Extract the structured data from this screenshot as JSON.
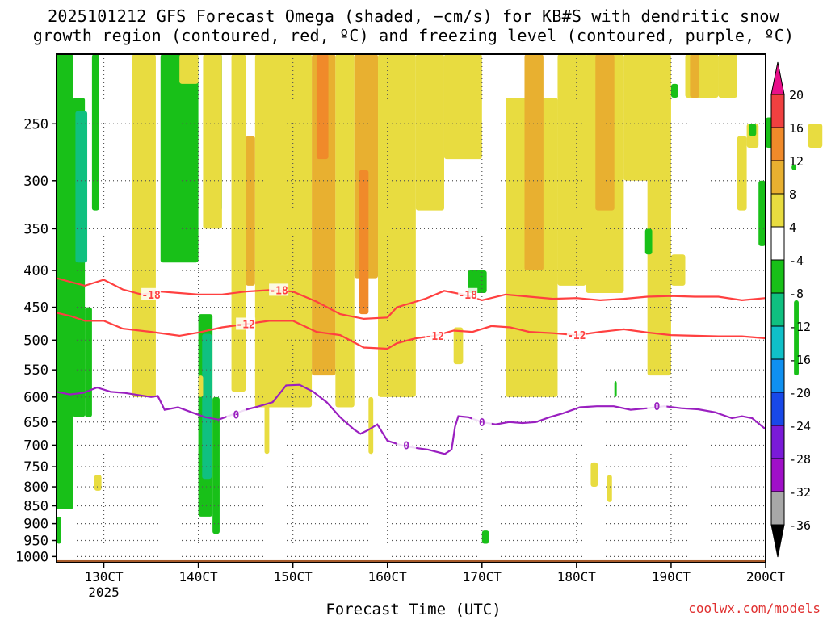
{
  "title": {
    "line1": "2025101212 GFS Forecast Omega (shaded, −cm/s) for KB#S with dendritic snow",
    "line2": "growth region (contoured, red, ºC) and freezing level (contoured, purple, ºC)"
  },
  "xlabel": "Forecast Time (UTC)",
  "credit": "coolwx.com/models",
  "colors": {
    "dgz_contour": "#ff4040",
    "freezing_contour": "#9a1fc0",
    "terrain": "#a65a2a"
  },
  "chart_data": {
    "type": "heatmap",
    "title": "2025101212 GFS Forecast Omega (shaded, −cm/s) for KB#S with dendritic snow growth region (contoured, red, ºC) and freezing level (contoured, purple, ºC)",
    "xlabel": "Forecast Time (UTC)",
    "ylabel": "",
    "x_axis": {
      "range": [
        "12 Oct 2025 12Z",
        "20 Oct 2025 00Z"
      ],
      "ticks": [
        "130CT",
        "140CT",
        "150CT",
        "160CT",
        "170CT",
        "180CT",
        "190CT",
        "200CT"
      ],
      "sub_label": "2025"
    },
    "y_axis": {
      "units": "hPa",
      "scale": "log-pressure, inverted",
      "range": [
        1020,
        200
      ],
      "ticks": [
        250,
        300,
        350,
        400,
        450,
        500,
        550,
        600,
        650,
        700,
        750,
        800,
        850,
        900,
        950,
        1000
      ]
    },
    "grid": true,
    "colorbar": {
      "placement": "right",
      "labels": [
        "20",
        "16",
        "12",
        "8",
        "4",
        "-4",
        "-8",
        "-12",
        "-16",
        "-20",
        "-24",
        "-28",
        "-32",
        "-36"
      ],
      "bands": [
        {
          "from": 16,
          "to": 20,
          "color": "#f04040"
        },
        {
          "from": 12,
          "to": 16,
          "color": "#f08a2a"
        },
        {
          "from": 8,
          "to": 12,
          "color": "#e8b030"
        },
        {
          "from": 4,
          "to": 8,
          "color": "#e8dc40"
        },
        {
          "from": -4,
          "to": 4,
          "color": "#ffffff"
        },
        {
          "from": -8,
          "to": -4,
          "color": "#18c018"
        },
        {
          "from": -12,
          "to": -8,
          "color": "#10c080"
        },
        {
          "from": -16,
          "to": -12,
          "color": "#10c0c8"
        },
        {
          "from": -20,
          "to": -16,
          "color": "#1090f0"
        },
        {
          "from": -24,
          "to": -20,
          "color": "#1848e8"
        },
        {
          "from": -28,
          "to": -24,
          "color": "#7a1ad8"
        },
        {
          "from": -32,
          "to": -28,
          "color": "#a010c8"
        },
        {
          "from": -36,
          "to": -32,
          "color": "#a8a8a8"
        }
      ],
      "top_arrow_color": "#e8108a",
      "bottom_arrow_color": "#000000"
    },
    "series": [
      {
        "name": "-18",
        "kind": "contour",
        "color": "#ff4040",
        "label_times": [
          2.0,
          4.7,
          8.7
        ],
        "points": [
          [
            0.0,
            410
          ],
          [
            0.3,
            415
          ],
          [
            0.6,
            420
          ],
          [
            1.0,
            412
          ],
          [
            1.4,
            425
          ],
          [
            1.8,
            432
          ],
          [
            2.2,
            428
          ],
          [
            2.6,
            430
          ],
          [
            3.0,
            432
          ],
          [
            3.5,
            432
          ],
          [
            4.0,
            428
          ],
          [
            4.5,
            426
          ],
          [
            5.0,
            428
          ],
          [
            5.5,
            442
          ],
          [
            6.0,
            460
          ],
          [
            6.5,
            467
          ],
          [
            7.0,
            465
          ],
          [
            7.2,
            450
          ],
          [
            7.8,
            438
          ],
          [
            8.2,
            427
          ],
          [
            8.6,
            432
          ],
          [
            9.0,
            440
          ],
          [
            9.5,
            432
          ],
          [
            10.0,
            435
          ],
          [
            10.5,
            438
          ],
          [
            11.0,
            437
          ],
          [
            11.5,
            440
          ],
          [
            12.0,
            438
          ],
          [
            12.5,
            435
          ],
          [
            13.0,
            434
          ],
          [
            13.5,
            435
          ],
          [
            14.0,
            435
          ],
          [
            14.5,
            440
          ],
          [
            15.0,
            437
          ]
        ]
      },
      {
        "name": "-12",
        "kind": "contour",
        "color": "#ff4040",
        "label_times": [
          4.0,
          8.0,
          11.0
        ],
        "points": [
          [
            0.0,
            458
          ],
          [
            0.3,
            463
          ],
          [
            0.6,
            470
          ],
          [
            1.0,
            470
          ],
          [
            1.4,
            482
          ],
          [
            2.0,
            487
          ],
          [
            2.6,
            493
          ],
          [
            3.0,
            488
          ],
          [
            3.5,
            480
          ],
          [
            4.0,
            475
          ],
          [
            4.5,
            470
          ],
          [
            5.0,
            470
          ],
          [
            5.5,
            487
          ],
          [
            6.0,
            492
          ],
          [
            6.5,
            512
          ],
          [
            7.0,
            514
          ],
          [
            7.2,
            505
          ],
          [
            7.6,
            497
          ],
          [
            8.0,
            493
          ],
          [
            8.4,
            485
          ],
          [
            8.8,
            487
          ],
          [
            9.2,
            478
          ],
          [
            9.6,
            480
          ],
          [
            10.0,
            487
          ],
          [
            10.5,
            489
          ],
          [
            11.0,
            492
          ],
          [
            11.5,
            487
          ],
          [
            12.0,
            483
          ],
          [
            12.5,
            488
          ],
          [
            13.0,
            492
          ],
          [
            13.5,
            493
          ],
          [
            14.0,
            494
          ],
          [
            14.5,
            494
          ],
          [
            15.0,
            497
          ]
        ]
      },
      {
        "name": "0",
        "kind": "contour",
        "color": "#9a1fc0",
        "label_times": [
          3.8,
          7.4,
          9.0,
          12.7
        ],
        "points": [
          [
            0.0,
            590
          ],
          [
            0.4,
            595
          ],
          [
            0.8,
            592
          ],
          [
            1.2,
            582
          ],
          [
            1.6,
            590
          ],
          [
            2.0,
            592
          ],
          [
            2.4,
            596
          ],
          [
            2.8,
            600
          ],
          [
            3.0,
            598
          ],
          [
            3.2,
            625
          ],
          [
            3.6,
            620
          ],
          [
            4.0,
            630
          ],
          [
            4.4,
            640
          ],
          [
            4.8,
            645
          ],
          [
            5.2,
            635
          ],
          [
            5.6,
            625
          ],
          [
            6.0,
            618
          ],
          [
            6.4,
            610
          ],
          [
            6.8,
            578
          ],
          [
            7.2,
            577
          ],
          [
            7.6,
            590
          ],
          [
            8.0,
            610
          ],
          [
            8.4,
            640
          ],
          [
            8.8,
            665
          ],
          [
            9.0,
            675
          ],
          [
            9.2,
            668
          ],
          [
            9.5,
            655
          ],
          [
            9.8,
            690
          ],
          [
            10.2,
            700
          ],
          [
            10.6,
            706
          ],
          [
            11.0,
            710
          ],
          [
            11.5,
            720
          ],
          [
            11.7,
            710
          ],
          [
            11.8,
            660
          ],
          [
            11.9,
            638
          ],
          [
            12.2,
            640
          ],
          [
            12.6,
            650
          ],
          [
            13.0,
            655
          ],
          [
            13.4,
            650
          ],
          [
            13.8,
            652
          ],
          [
            14.2,
            650
          ],
          [
            14.6,
            640
          ],
          [
            15.0,
            632
          ],
          [
            15.5,
            620
          ],
          [
            16.0,
            618
          ],
          [
            16.5,
            618
          ],
          [
            17.0,
            625
          ],
          [
            17.5,
            622
          ],
          [
            18.0,
            618
          ],
          [
            18.5,
            622
          ],
          [
            19.0,
            624
          ],
          [
            19.5,
            630
          ],
          [
            20.0,
            642
          ],
          [
            20.3,
            638
          ],
          [
            20.6,
            642
          ],
          [
            21.0,
            665
          ]
        ]
      }
    ],
    "omega_regions": [
      {
        "t0": 0.0,
        "t1": 0.35,
        "p_top": 200,
        "p_bot": 860,
        "value": -6
      },
      {
        "t0": 0.35,
        "t1": 0.6,
        "p_top": 230,
        "p_bot": 640,
        "value": -6
      },
      {
        "t0": 0.4,
        "t1": 0.65,
        "p_top": 240,
        "p_bot": 390,
        "value": -10
      },
      {
        "t0": 0.75,
        "t1": 0.9,
        "p_top": 200,
        "p_bot": 330,
        "value": -6
      },
      {
        "t0": 0.6,
        "t1": 0.75,
        "p_top": 450,
        "p_bot": 640,
        "value": -6
      },
      {
        "t0": 2.2,
        "t1": 3.0,
        "p_top": 200,
        "p_bot": 390,
        "value": -6
      },
      {
        "t0": 3.0,
        "t1": 3.3,
        "p_top": 460,
        "p_bot": 880,
        "value": -6
      },
      {
        "t0": 3.08,
        "t1": 3.28,
        "p_top": 490,
        "p_bot": 780,
        "value": -12
      },
      {
        "t0": 3.3,
        "t1": 3.45,
        "p_top": 600,
        "p_bot": 930,
        "value": -6
      },
      {
        "t0": 3.42,
        "t1": 3.5,
        "p_top": 200,
        "p_bot": 330,
        "value": -14
      },
      {
        "t0": 8.7,
        "t1": 9.1,
        "p_top": 400,
        "p_bot": 430,
        "value": -6
      },
      {
        "t0": 9.0,
        "t1": 9.15,
        "p_top": 920,
        "p_bot": 960,
        "value": -6
      },
      {
        "t0": 11.8,
        "t1": 11.85,
        "p_top": 570,
        "p_bot": 600,
        "value": -6
      },
      {
        "t0": 12.45,
        "t1": 12.6,
        "p_top": 350,
        "p_bot": 380,
        "value": -6
      },
      {
        "t0": 13.0,
        "t1": 13.15,
        "p_top": 220,
        "p_bot": 230,
        "value": -6
      },
      {
        "t0": 14.65,
        "t1": 14.8,
        "p_top": 250,
        "p_bot": 260,
        "value": -6
      },
      {
        "t0": 15.0,
        "t1": 15.3,
        "p_top": 245,
        "p_bot": 270,
        "value": -8
      },
      {
        "t0": 14.85,
        "t1": 15.0,
        "p_top": 300,
        "p_bot": 370,
        "value": -6
      },
      {
        "t0": 15.55,
        "t1": 15.65,
        "p_top": 285,
        "p_bot": 290,
        "value": -6
      },
      {
        "t0": 15.6,
        "t1": 15.7,
        "p_top": 440,
        "p_bot": 560,
        "value": -6
      },
      {
        "t0": 0.0,
        "t1": 0.1,
        "p_top": 880,
        "p_bot": 960,
        "value": -6
      },
      {
        "t0": 3.0,
        "t1": 3.1,
        "p_top": 560,
        "p_bot": 600,
        "value": 6
      },
      {
        "t0": 3.1,
        "t1": 3.5,
        "p_top": 200,
        "p_bot": 350,
        "value": 6
      },
      {
        "t0": 2.6,
        "t1": 3.0,
        "p_top": 200,
        "p_bot": 220,
        "value": 6
      }
    ],
    "positive_regions": [
      {
        "t0": 1.6,
        "t1": 2.1,
        "p_top": 200,
        "p_bot": 600,
        "value": 5
      },
      {
        "t0": 3.7,
        "t1": 4.0,
        "p_top": 200,
        "p_bot": 590,
        "value": 5
      },
      {
        "t0": 4.0,
        "t1": 4.2,
        "p_top": 260,
        "p_bot": 420,
        "value": 9
      },
      {
        "t0": 4.2,
        "t1": 5.4,
        "p_top": 200,
        "p_bot": 620,
        "value": 5
      },
      {
        "t0": 5.4,
        "t1": 5.9,
        "p_top": 200,
        "p_bot": 560,
        "value": 9
      },
      {
        "t0": 5.5,
        "t1": 5.75,
        "p_top": 200,
        "p_bot": 280,
        "value": 13
      },
      {
        "t0": 5.9,
        "t1": 6.3,
        "p_top": 200,
        "p_bot": 620,
        "value": 5
      },
      {
        "t0": 6.3,
        "t1": 6.8,
        "p_top": 200,
        "p_bot": 410,
        "value": 9
      },
      {
        "t0": 6.4,
        "t1": 6.6,
        "p_top": 290,
        "p_bot": 460,
        "value": 13
      },
      {
        "t0": 6.8,
        "t1": 7.6,
        "p_top": 200,
        "p_bot": 600,
        "value": 5
      },
      {
        "t0": 7.6,
        "t1": 8.2,
        "p_top": 200,
        "p_bot": 330,
        "value": 5
      },
      {
        "t0": 8.2,
        "t1": 9.0,
        "p_top": 200,
        "p_bot": 280,
        "value": 5
      },
      {
        "t0": 9.5,
        "t1": 10.6,
        "p_top": 230,
        "p_bot": 600,
        "value": 5
      },
      {
        "t0": 9.9,
        "t1": 10.3,
        "p_top": 200,
        "p_bot": 400,
        "value": 9
      },
      {
        "t0": 10.6,
        "t1": 11.2,
        "p_top": 200,
        "p_bot": 420,
        "value": 5
      },
      {
        "t0": 11.2,
        "t1": 12.0,
        "p_top": 200,
        "p_bot": 430,
        "value": 5
      },
      {
        "t0": 11.4,
        "t1": 11.8,
        "p_top": 200,
        "p_bot": 330,
        "value": 9
      },
      {
        "t0": 12.0,
        "t1": 12.6,
        "p_top": 200,
        "p_bot": 300,
        "value": 5
      },
      {
        "t0": 12.5,
        "t1": 13.0,
        "p_top": 200,
        "p_bot": 560,
        "value": 5
      },
      {
        "t0": 13.0,
        "t1": 13.3,
        "p_top": 380,
        "p_bot": 420,
        "value": 5
      },
      {
        "t0": 13.3,
        "t1": 14.0,
        "p_top": 200,
        "p_bot": 230,
        "value": 5
      },
      {
        "t0": 13.4,
        "t1": 13.6,
        "p_top": 200,
        "p_bot": 230,
        "value": 9
      },
      {
        "t0": 14.0,
        "t1": 14.4,
        "p_top": 200,
        "p_bot": 230,
        "value": 5
      },
      {
        "t0": 14.4,
        "t1": 14.6,
        "p_top": 260,
        "p_bot": 330,
        "value": 5
      },
      {
        "t0": 14.6,
        "t1": 14.85,
        "p_top": 250,
        "p_bot": 270,
        "value": 5
      },
      {
        "t0": 16.3,
        "t1": 16.45,
        "p_top": 380,
        "p_bot": 420,
        "value": 5
      },
      {
        "t0": 15.9,
        "t1": 16.2,
        "p_top": 250,
        "p_bot": 270,
        "value": 5
      },
      {
        "t0": 4.4,
        "t1": 4.5,
        "p_top": 600,
        "p_bot": 720,
        "value": 5
      },
      {
        "t0": 0.0,
        "t1": 0.1,
        "p_top": 680,
        "p_bot": 790,
        "value": 9
      },
      {
        "t0": 0.8,
        "t1": 0.95,
        "p_top": 770,
        "p_bot": 810,
        "value": 5
      },
      {
        "t0": 11.3,
        "t1": 11.45,
        "p_top": 740,
        "p_bot": 800,
        "value": 5
      },
      {
        "t0": 11.65,
        "t1": 11.75,
        "p_top": 770,
        "p_bot": 840,
        "value": 5
      },
      {
        "t0": 6.6,
        "t1": 6.7,
        "p_top": 600,
        "p_bot": 720,
        "value": 5
      },
      {
        "t0": 8.4,
        "t1": 8.6,
        "p_top": 480,
        "p_bot": 540,
        "value": 5
      }
    ]
  }
}
